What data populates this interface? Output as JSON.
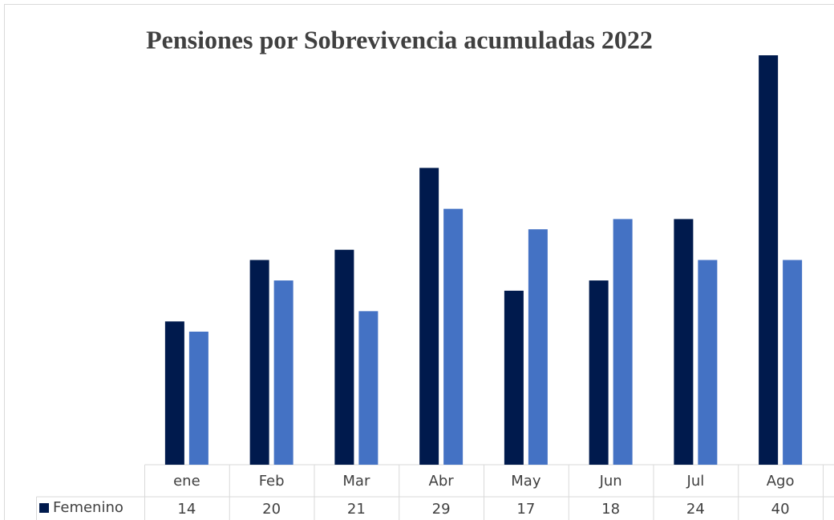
{
  "chart_data": {
    "type": "bar",
    "title": "Pensiones por Sobrevivencia acumuladas 2022",
    "categories": [
      "ene",
      "Feb",
      "Mar",
      "Abr",
      "May",
      "Jun",
      "Jul",
      "Ago"
    ],
    "series": [
      {
        "name": "Femenino",
        "color": "#001a4d",
        "values": [
          14,
          20,
          21,
          29,
          17,
          18,
          24,
          40
        ]
      },
      {
        "color": "#4472c4",
        "values": [
          13,
          18,
          15,
          25,
          23,
          24,
          20,
          20
        ]
      }
    ],
    "ylim": [
      0,
      40
    ]
  }
}
